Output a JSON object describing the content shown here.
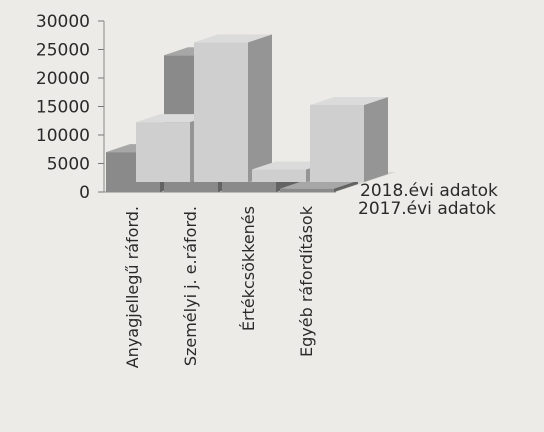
{
  "chart_data": {
    "type": "bar",
    "title": "",
    "xlabel": "",
    "ylabel": "",
    "ylim": [
      0,
      30000
    ],
    "yticks": [
      "30000",
      "25000",
      "20000",
      "15000",
      "10000",
      "5000",
      "0"
    ],
    "grid": false,
    "categories": [
      "Anyagjellegű ráford.",
      "Személyi j. e.ráford.",
      "Értékcsökkenés",
      "Egyéb ráfordítások"
    ],
    "series": [
      {
        "name": "2018.évi adatok",
        "values": [
          10500,
          24500,
          2200,
          13500
        ],
        "color": "#cfcfcf"
      },
      {
        "name": "2017.évi adatok",
        "values": [
          7000,
          24000,
          1800,
          600
        ],
        "color": "#8a8a8a"
      }
    ]
  }
}
